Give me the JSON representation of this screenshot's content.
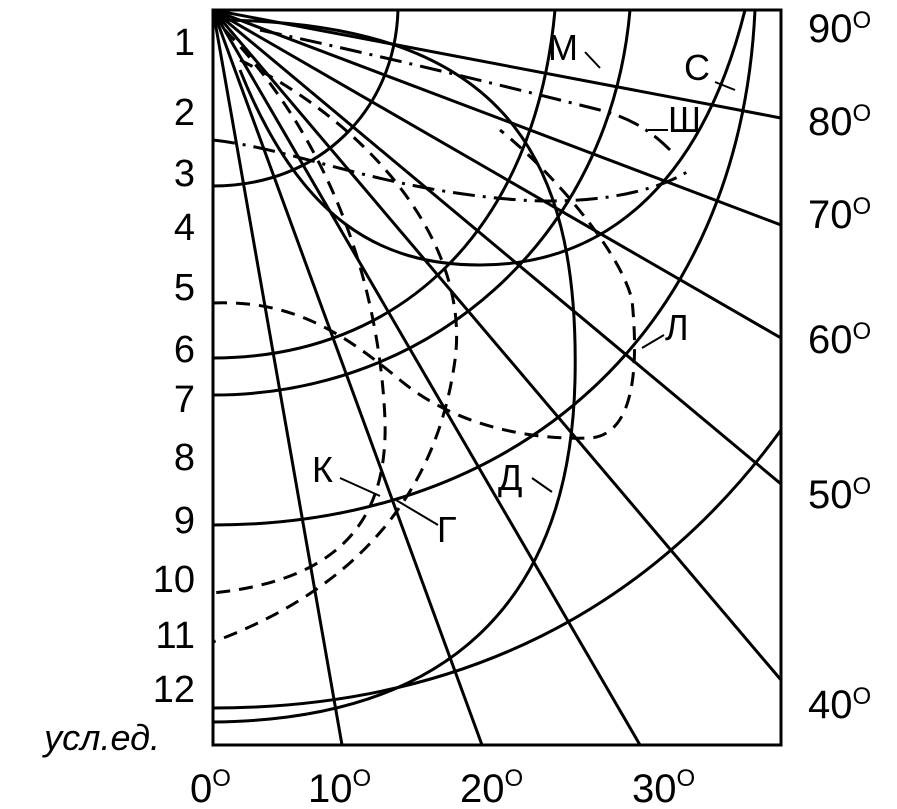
{
  "left_scale": {
    "unit_label": "усл.ед.",
    "ticks": [
      "1",
      "2",
      "3",
      "4",
      "5",
      "6",
      "7",
      "8",
      "9",
      "10",
      "11",
      "12"
    ]
  },
  "bottom_scale": {
    "ticks": [
      "0",
      "10",
      "20",
      "30"
    ],
    "degree_mark": "O"
  },
  "right_scale": {
    "ticks": [
      "90",
      "80",
      "70",
      "60",
      "50",
      "40"
    ],
    "degree_mark": "O"
  },
  "curve_labels": {
    "m": "М",
    "s": "С",
    "sh": "Ш",
    "l": "Л",
    "d": "Д",
    "k": "К",
    "g": "Г"
  }
}
